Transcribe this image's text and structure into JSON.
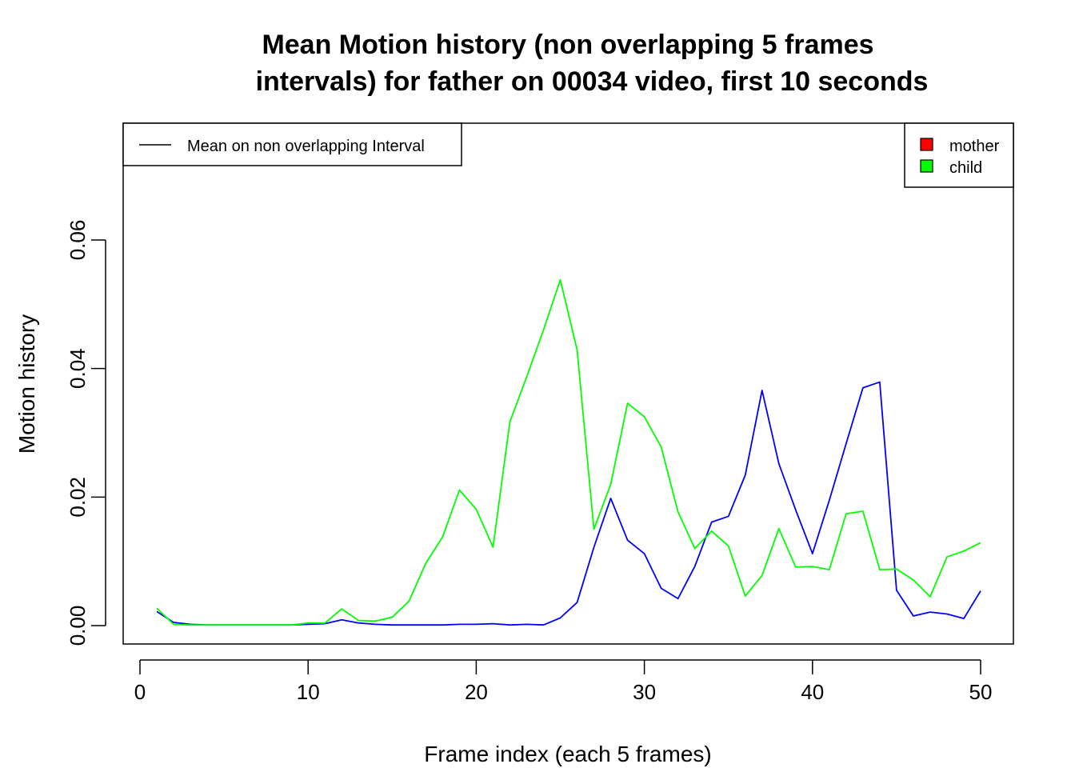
{
  "chart_data": {
    "type": "line",
    "title_lines": [
      "Mean Motion history (non overlapping 5 frames",
      "intervals) for father on 00034 video, first 10 seconds"
    ],
    "xlabel": "Frame index (each 5 frames)",
    "ylabel": "Motion history",
    "xlim": [
      0,
      50
    ],
    "ylim": [
      0,
      0.078
    ],
    "x_ticks": [
      0,
      10,
      20,
      30,
      40,
      50
    ],
    "y_ticks": [
      0.0,
      0.02,
      0.04,
      0.06
    ],
    "x_tick_labels": [
      "0",
      "10",
      "20",
      "30",
      "40",
      "50"
    ],
    "y_tick_labels": [
      "0.00",
      "0.02",
      "0.04",
      "0.06"
    ],
    "grid": false,
    "legend_left": {
      "position": "top-left",
      "entries": [
        {
          "label": "Mean on non overlapping Interval",
          "color": "#000000",
          "style": "line"
        }
      ]
    },
    "legend_right": {
      "position": "top-right",
      "entries": [
        {
          "label": "mother",
          "color": "#ff0000",
          "style": "box"
        },
        {
          "label": "child",
          "color": "#00ff00",
          "style": "box"
        }
      ]
    },
    "x": [
      1,
      2,
      3,
      4,
      5,
      6,
      7,
      8,
      9,
      10,
      11,
      12,
      13,
      14,
      15,
      16,
      17,
      18,
      19,
      20,
      21,
      22,
      23,
      24,
      25,
      26,
      27,
      28,
      29,
      30,
      31,
      32,
      33,
      34,
      35,
      36,
      37,
      38,
      39,
      40,
      41,
      42,
      43,
      44,
      45,
      46,
      47,
      48,
      49,
      50
    ],
    "series": [
      {
        "color": "#0000ff",
        "values": [
          0.0022,
          0.0005,
          0.0002,
          0.0001,
          0.0001,
          0.0001,
          0.0001,
          0.0001,
          0.0001,
          0.0002,
          0.0003,
          0.0009,
          0.0004,
          0.0002,
          0.0001,
          0.0001,
          0.0001,
          0.0001,
          0.0002,
          0.0002,
          0.0003,
          0.0001,
          0.0002,
          0.0001,
          0.0012,
          0.0036,
          0.0122,
          0.0198,
          0.0133,
          0.0112,
          0.0058,
          0.0042,
          0.0092,
          0.0161,
          0.017,
          0.0234,
          0.0366,
          0.0252,
          0.018,
          0.0112,
          0.0195,
          0.0283,
          0.037,
          0.0379,
          0.0055,
          0.0015,
          0.0021,
          0.0018,
          0.0011,
          0.0054
        ]
      },
      {
        "color": "#00ff00",
        "values": [
          0.0027,
          0.0002,
          0.0001,
          0.0001,
          0.0001,
          0.0001,
          0.0001,
          0.0001,
          0.0001,
          0.0004,
          0.0004,
          0.0026,
          0.0008,
          0.0007,
          0.0013,
          0.0038,
          0.0097,
          0.0138,
          0.0211,
          0.0181,
          0.0122,
          0.0317,
          0.0387,
          0.046,
          0.0538,
          0.0429,
          0.015,
          0.022,
          0.0346,
          0.0325,
          0.0278,
          0.0177,
          0.012,
          0.0147,
          0.0124,
          0.0046,
          0.0078,
          0.0151,
          0.0091,
          0.0092,
          0.0087,
          0.0174,
          0.0178,
          0.0087,
          0.0088,
          0.0071,
          0.0045,
          0.0107,
          0.0116,
          0.0129
        ]
      }
    ]
  }
}
